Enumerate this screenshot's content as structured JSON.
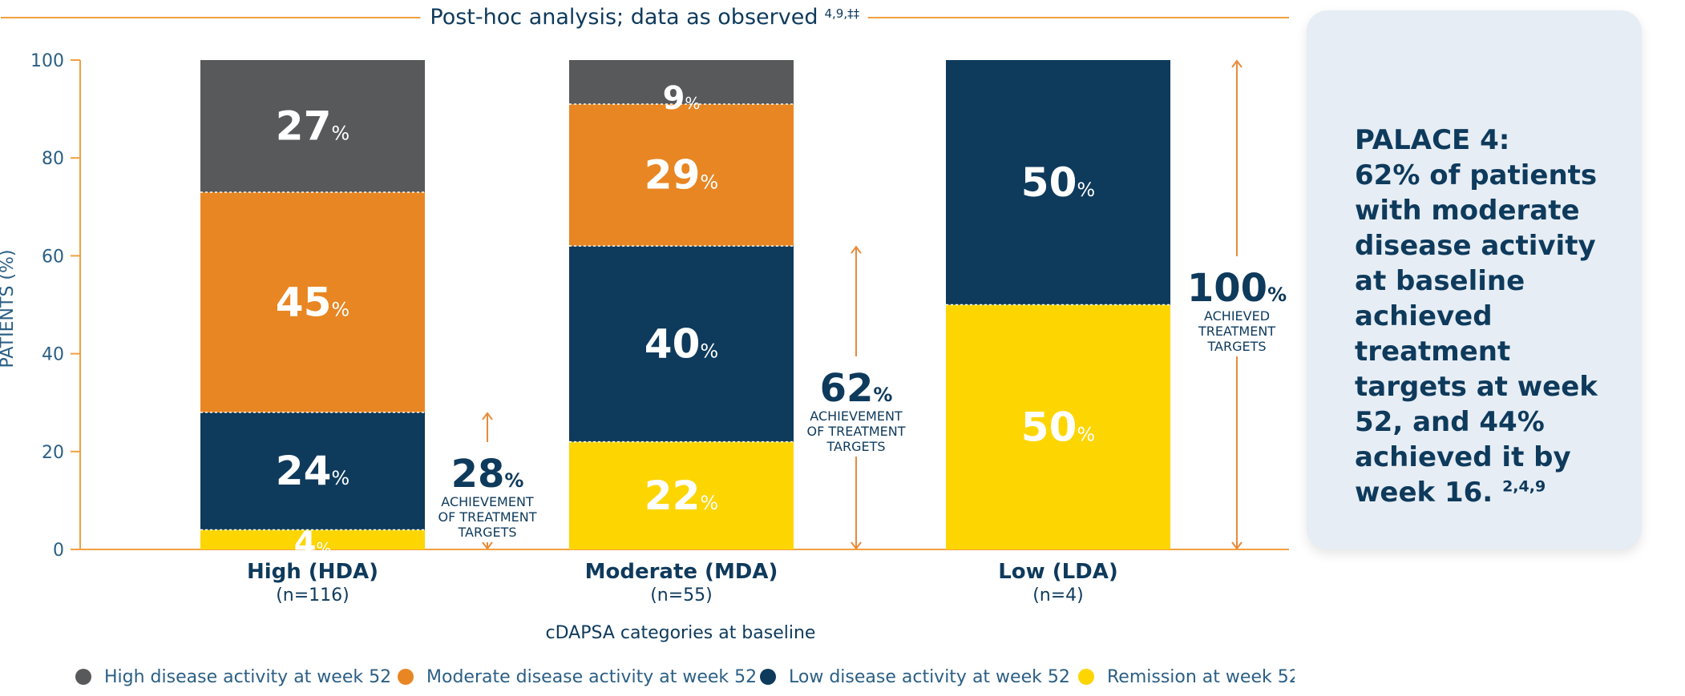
{
  "chart_data": {
    "type": "bar",
    "stacked": true,
    "title": "Post-hoc analysis; data as observed",
    "title_refs": "4,9,‡‡",
    "ylabel": "PATIENTS (%)",
    "xlabel": "cDAPSA categories at baseline",
    "ylim": [
      0,
      100
    ],
    "yticks": [
      0,
      20,
      40,
      60,
      80,
      100
    ],
    "categories": [
      {
        "label": "High (HDA)",
        "n": "(n=116)"
      },
      {
        "label": "Moderate (MDA)",
        "n": "(n=55)"
      },
      {
        "label": "Low (LDA)",
        "n": "(n=4)"
      }
    ],
    "series": [
      {
        "name": "Remission at week 52",
        "color": "#fdd500",
        "values": [
          4,
          22,
          50
        ]
      },
      {
        "name": "Low disease activity at week 52",
        "color": "#0e3a5c",
        "values": [
          24,
          40,
          50
        ]
      },
      {
        "name": "Moderate disease activity at week 52",
        "color": "#e88623",
        "values": [
          45,
          29,
          0
        ]
      },
      {
        "name": "High disease activity at week 52",
        "color": "#58595b",
        "values": [
          27,
          9,
          0
        ]
      }
    ],
    "legend_order": [
      3,
      2,
      1,
      0
    ],
    "legend_position": "bottom",
    "percent_suffix": "%",
    "annotations": [
      {
        "value": "28",
        "suffix": "%",
        "range": [
          0,
          28
        ],
        "lines": [
          "ACHIEVEMENT",
          "OF TREATMENT",
          "TARGETS"
        ]
      },
      {
        "value": "62",
        "suffix": "%",
        "range": [
          0,
          62
        ],
        "lines": [
          "ACHIEVEMENT",
          "OF TREATMENT",
          "TARGETS"
        ]
      },
      {
        "value": "100",
        "suffix": "%",
        "range": [
          0,
          100
        ],
        "lines": [
          "ACHIEVED",
          "TREATMENT",
          "TARGETS"
        ]
      }
    ]
  },
  "callout": {
    "title": "PALACE 4:",
    "body": "62% of patients with moderate disease activity at baseline achieved treatment targets at week 52, and 44% achieved it by week 16.",
    "refs": "2,4,9"
  },
  "colors": {
    "orange_line": "#f0a040",
    "navy": "#0e3a5c",
    "axis_text": "#2b5f85",
    "annotation_arrow": "#e88a3a"
  }
}
